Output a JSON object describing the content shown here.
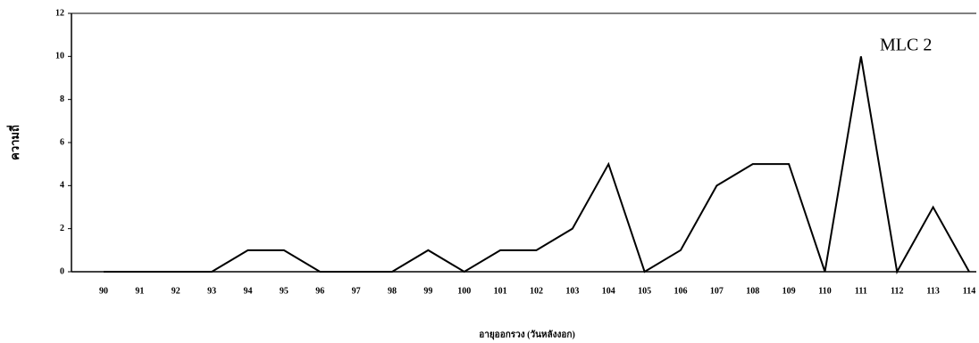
{
  "chart_data": {
    "type": "line",
    "x_label": "อายุออกรวง (วันหลังงอก)",
    "y_label": "ความถี่",
    "annotation": "MLC 2",
    "categories": [
      "90",
      "91",
      "92",
      "93",
      "94",
      "95",
      "96",
      "97",
      "98",
      "99",
      "100",
      "101",
      "102",
      "103",
      "104",
      "105",
      "106",
      "107",
      "108",
      "109",
      "110",
      "111",
      "112",
      "113",
      "114"
    ],
    "values": [
      0,
      0,
      0,
      0,
      1,
      1,
      0,
      0,
      0,
      1,
      0,
      1,
      1,
      2,
      5,
      0,
      1,
      4,
      5,
      5,
      0,
      10,
      0,
      3,
      0
    ],
    "color": "#000000",
    "ylim": [
      0,
      12
    ],
    "yticks": [
      0,
      2,
      4,
      6,
      8,
      10,
      12
    ]
  }
}
